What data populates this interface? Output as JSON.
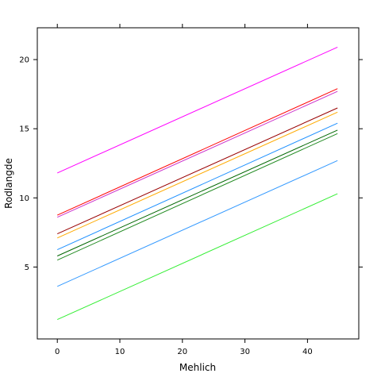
{
  "chart_data": {
    "type": "line",
    "xlabel": "Mehlich",
    "ylabel": "Rodlangde",
    "xlim": [
      -3.2,
      48.2
    ],
    "ylim": [
      -0.2,
      22.3
    ],
    "x_ticks": [
      0,
      10,
      20,
      30,
      40
    ],
    "y_ticks": [
      5,
      10,
      15,
      20
    ],
    "grid": false,
    "legend": "none",
    "series": [
      {
        "color": "#ff00ff",
        "x": [
          0,
          44.8
        ],
        "y": [
          11.8,
          20.9
        ]
      },
      {
        "color": "#ff0000",
        "x": [
          0,
          44.8
        ],
        "y": [
          8.75,
          17.9
        ]
      },
      {
        "color": "#cc33cc",
        "x": [
          0,
          44.8
        ],
        "y": [
          8.6,
          17.7
        ]
      },
      {
        "color": "#990000",
        "x": [
          0,
          44.8
        ],
        "y": [
          7.4,
          16.5
        ]
      },
      {
        "color": "#ffaa00",
        "x": [
          0,
          44.8
        ],
        "y": [
          7.1,
          16.2
        ]
      },
      {
        "color": "#1e90ff",
        "x": [
          0,
          44.8
        ],
        "y": [
          6.25,
          15.4
        ]
      },
      {
        "color": "#006600",
        "x": [
          0,
          44.8
        ],
        "y": [
          5.8,
          14.9
        ]
      },
      {
        "color": "#228b22",
        "x": [
          0,
          44.8
        ],
        "y": [
          5.5,
          14.65
        ]
      },
      {
        "color": "#3399ff",
        "x": [
          0,
          44.8
        ],
        "y": [
          3.6,
          12.7
        ]
      },
      {
        "color": "#33ee33",
        "x": [
          0,
          44.8
        ],
        "y": [
          1.2,
          10.3
        ]
      }
    ]
  }
}
